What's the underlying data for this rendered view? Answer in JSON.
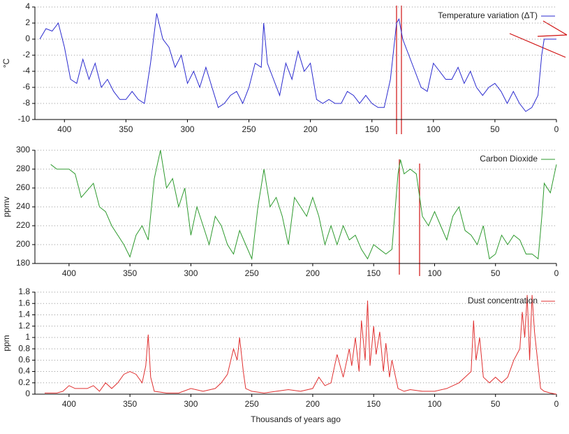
{
  "chart_data": [
    {
      "type": "line",
      "ylabel": "°C",
      "xlim": [
        424,
        0
      ],
      "xticks": [
        400,
        350,
        300,
        250,
        200,
        150,
        100,
        50,
        0
      ],
      "ylim": [
        -10,
        4
      ],
      "yticks": [
        -10,
        -8,
        -6,
        -4,
        -2,
        0,
        2,
        4
      ],
      "grid": true,
      "legend": "upper right",
      "x": [
        420,
        415,
        410,
        405,
        400,
        395,
        390,
        385,
        380,
        375,
        370,
        365,
        360,
        355,
        350,
        345,
        340,
        335,
        330,
        325,
        320,
        315,
        310,
        305,
        300,
        295,
        290,
        285,
        280,
        275,
        270,
        265,
        260,
        255,
        250,
        245,
        240,
        238,
        235,
        230,
        225,
        220,
        215,
        210,
        205,
        200,
        195,
        190,
        185,
        180,
        175,
        170,
        165,
        160,
        155,
        150,
        145,
        140,
        135,
        130,
        128,
        125,
        120,
        115,
        110,
        105,
        100,
        95,
        90,
        85,
        80,
        75,
        70,
        65,
        60,
        55,
        50,
        45,
        40,
        35,
        30,
        25,
        20,
        15,
        12,
        10,
        5,
        0
      ],
      "series": [
        {
          "name": "Temperature variation (ΔT)",
          "color": "#2a2acf",
          "values": [
            0,
            1.3,
            1,
            2,
            -1,
            -5,
            -5.5,
            -2.5,
            -5,
            -3,
            -6,
            -5,
            -6.5,
            -7.5,
            -7.5,
            -6.5,
            -7.5,
            -8,
            -3,
            3.2,
            0,
            -1,
            -3.5,
            -2,
            -5.5,
            -4,
            -6,
            -3.5,
            -6,
            -8.5,
            -8,
            -7,
            -6.5,
            -8,
            -6,
            -3,
            -3.5,
            2,
            -3,
            -5,
            -7,
            -3,
            -5,
            -1.5,
            -4,
            -3,
            -7.5,
            -8,
            -7.5,
            -8,
            -8,
            -6.5,
            -7,
            -8,
            -7,
            -8,
            -8.5,
            -8.5,
            -5,
            2,
            2.5,
            0,
            -2,
            -4,
            -6,
            -6.5,
            -3,
            -4,
            -5,
            -5,
            -3.5,
            -5.5,
            -4,
            -6,
            -7,
            -6,
            -5.5,
            -6.5,
            -8,
            -6.5,
            -8,
            -9,
            -8.5,
            -7,
            -2,
            0,
            0,
            0
          ]
        }
      ]
    },
    {
      "type": "line",
      "ylabel": "ppmv",
      "xlim": [
        428,
        0
      ],
      "xticks": [
        400,
        350,
        300,
        250,
        200,
        150,
        100,
        50,
        0
      ],
      "ylim": [
        180,
        300
      ],
      "yticks": [
        180,
        200,
        220,
        240,
        260,
        280,
        300
      ],
      "grid": true,
      "legend": "upper right",
      "x": [
        415,
        410,
        400,
        395,
        390,
        380,
        375,
        370,
        365,
        355,
        350,
        345,
        340,
        335,
        330,
        325,
        320,
        315,
        310,
        305,
        300,
        295,
        290,
        285,
        280,
        275,
        270,
        265,
        260,
        255,
        250,
        245,
        240,
        235,
        230,
        225,
        220,
        215,
        210,
        205,
        200,
        195,
        190,
        185,
        180,
        175,
        170,
        165,
        160,
        155,
        150,
        145,
        140,
        135,
        130,
        128,
        125,
        120,
        115,
        110,
        105,
        100,
        95,
        90,
        85,
        80,
        75,
        70,
        65,
        60,
        55,
        50,
        45,
        40,
        35,
        30,
        25,
        20,
        15,
        12,
        10,
        5,
        0
      ],
      "series": [
        {
          "name": "Carbon Dioxide",
          "color": "#2e9a2e",
          "values": [
            285,
            280,
            280,
            275,
            250,
            265,
            240,
            235,
            220,
            200,
            187,
            210,
            220,
            205,
            270,
            300,
            260,
            270,
            240,
            260,
            210,
            240,
            220,
            200,
            230,
            220,
            200,
            190,
            215,
            200,
            185,
            240,
            280,
            240,
            250,
            230,
            200,
            250,
            240,
            230,
            250,
            230,
            200,
            220,
            200,
            220,
            205,
            210,
            195,
            185,
            200,
            195,
            190,
            195,
            275,
            290,
            275,
            280,
            275,
            230,
            220,
            235,
            220,
            205,
            230,
            240,
            215,
            210,
            200,
            220,
            185,
            190,
            210,
            200,
            210,
            205,
            190,
            190,
            185,
            230,
            265,
            255,
            285
          ]
        }
      ]
    },
    {
      "type": "line",
      "ylabel": "ppm",
      "xlabel": "Thousands of years ago",
      "xlim": [
        428,
        0
      ],
      "xticks": [
        400,
        350,
        300,
        250,
        200,
        150,
        100,
        50,
        0
      ],
      "ylim": [
        0,
        1.8
      ],
      "yticks": [
        0,
        0.2,
        0.4,
        0.6,
        0.8,
        1,
        1.2,
        1.4,
        1.6,
        1.8
      ],
      "grid": true,
      "legend": "upper right",
      "x": [
        420,
        410,
        405,
        400,
        395,
        390,
        385,
        380,
        375,
        370,
        365,
        360,
        355,
        350,
        345,
        340,
        337,
        335,
        333,
        330,
        320,
        310,
        300,
        290,
        280,
        275,
        270,
        265,
        262,
        260,
        257,
        255,
        250,
        240,
        230,
        220,
        210,
        200,
        195,
        190,
        185,
        180,
        175,
        170,
        168,
        165,
        162,
        160,
        157,
        155,
        153,
        150,
        148,
        145,
        142,
        140,
        137,
        135,
        130,
        125,
        120,
        110,
        100,
        90,
        80,
        75,
        70,
        68,
        66,
        63,
        60,
        55,
        50,
        45,
        40,
        35,
        30,
        28,
        26,
        24,
        22,
        20,
        18,
        15,
        13,
        10,
        5,
        0
      ],
      "series": [
        {
          "name": "Dust concentration",
          "color": "#e03030",
          "values": [
            0.02,
            0.02,
            0.05,
            0.15,
            0.1,
            0.1,
            0.1,
            0.15,
            0.05,
            0.2,
            0.1,
            0.2,
            0.35,
            0.4,
            0.35,
            0.2,
            0.5,
            1.05,
            0.3,
            0.05,
            0.02,
            0.02,
            0.1,
            0.05,
            0.1,
            0.2,
            0.35,
            0.8,
            0.6,
            1.0,
            0.4,
            0.1,
            0.05,
            0.02,
            0.05,
            0.08,
            0.05,
            0.1,
            0.3,
            0.15,
            0.2,
            0.7,
            0.3,
            0.8,
            0.5,
            1.0,
            0.4,
            1.3,
            0.6,
            1.65,
            0.5,
            1.2,
            0.7,
            1.1,
            0.4,
            0.9,
            0.3,
            0.6,
            0.1,
            0.05,
            0.08,
            0.05,
            0.05,
            0.1,
            0.2,
            0.3,
            0.4,
            1.3,
            0.6,
            1.0,
            0.3,
            0.2,
            0.3,
            0.2,
            0.3,
            0.6,
            0.8,
            1.45,
            1.0,
            1.75,
            0.6,
            1.75,
            1.1,
            0.5,
            0.1,
            0.05,
            0.02,
            0
          ]
        }
      ]
    }
  ]
}
